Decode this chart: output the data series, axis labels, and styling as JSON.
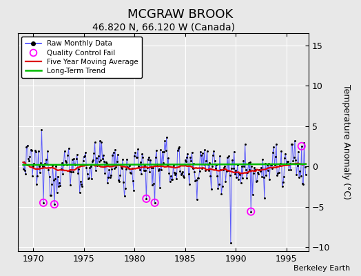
{
  "title": "MCGRAW BROOK",
  "subtitle": "46.820 N, 66.120 W (Canada)",
  "ylabel": "Temperature Anomaly (°C)",
  "credit": "Berkeley Earth",
  "xlim": [
    1968.5,
    1997.2
  ],
  "ylim": [
    -10.5,
    16.5
  ],
  "yticks": [
    -10,
    -5,
    0,
    5,
    10,
    15
  ],
  "xticks": [
    1970,
    1975,
    1980,
    1985,
    1990,
    1995
  ],
  "bg_color": "#e8e8e8",
  "plot_bg": "#e8e8e8",
  "raw_line_color": "#4444ff",
  "raw_dot_color": "#000000",
  "ma_color": "#dd0000",
  "trend_color": "#00bb00",
  "qc_color": "#ff00ff",
  "title_fontsize": 13,
  "subtitle_fontsize": 10,
  "tick_fontsize": 9,
  "ylabel_fontsize": 9
}
